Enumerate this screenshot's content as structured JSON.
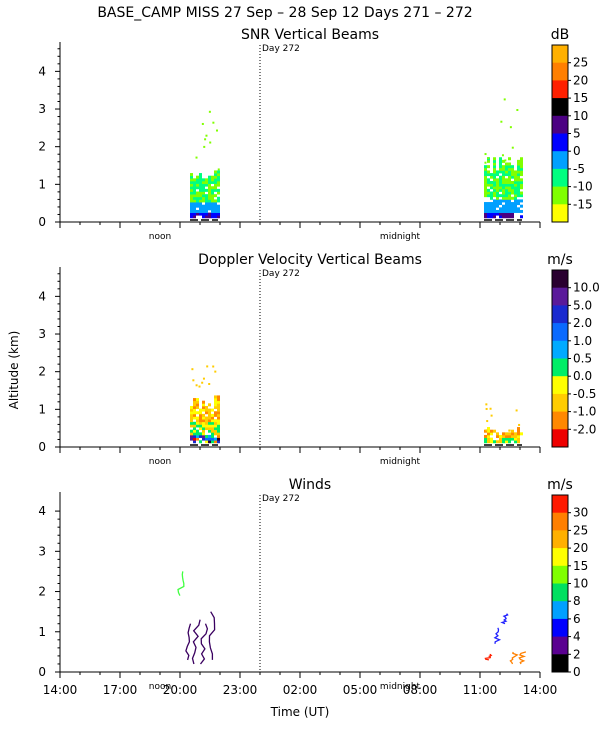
{
  "header": {
    "title": "BASE_CAMP MISS  27 Sep – 28 Sep 12 Days 271 – 272"
  },
  "common": {
    "y_axis_label": "Altitude (km)",
    "x_axis_label": "Time (UT)",
    "x_tick_labels": [
      "14:00",
      "17:00",
      "20:00",
      "23:00",
      "02:00",
      "05:00",
      "08:00",
      "11:00",
      "14:00"
    ],
    "noon_label": "noon",
    "midnight_label": "midnight",
    "day_marker_label": "Day 272",
    "y_tick_labels": [
      "0",
      "1",
      "2",
      "3",
      "4"
    ]
  },
  "chart_data": [
    {
      "type": "heatmap",
      "title": "SNR Vertical Beams",
      "xlabel": "",
      "ylabel": "Altitude (km)",
      "x_range_hours_ut": [
        14,
        38
      ],
      "ylim": [
        0,
        4.7
      ],
      "colorbar": {
        "unit": "dB",
        "tick_labels": [
          "25",
          "20",
          "15",
          "10",
          "5",
          "0",
          "-5",
          "-10",
          "-15"
        ],
        "colors": [
          "#ffb000",
          "#ff7f00",
          "#ff2000",
          "#000000",
          "#4b0082",
          "#0000ff",
          "#00a0ff",
          "#00ff80",
          "#80ff00",
          "#ffff00"
        ]
      },
      "data_blocks": [
        {
          "start_hour": 20.5,
          "end_hour": 21.9,
          "alt_top_km": 1.35,
          "scattered_to_km": 3.0
        },
        {
          "start_hour": 35.2,
          "end_hour": 37.1,
          "alt_top_km": 1.6,
          "scattered_to_km": 3.5
        }
      ]
    },
    {
      "type": "heatmap",
      "title": "Doppler Velocity Vertical Beams",
      "xlabel": "",
      "ylabel": "Altitude (km)",
      "x_range_hours_ut": [
        14,
        38
      ],
      "ylim": [
        0,
        4.7
      ],
      "colorbar": {
        "unit": "m/s",
        "tick_labels": [
          "10.0",
          "5.0",
          "2.0",
          "1.0",
          "0.5",
          "0.0",
          "-0.5",
          "-1.0",
          "-2.0"
        ],
        "colors": [
          "#2a0030",
          "#5a1a9a",
          "#1a2ad0",
          "#0a6aff",
          "#00aaff",
          "#00ee66",
          "#ffff00",
          "#ffcc00",
          "#ff8800",
          "#ee0000"
        ]
      },
      "data_blocks": [
        {
          "start_hour": 20.5,
          "end_hour": 21.9,
          "alt_top_km": 1.3,
          "scattered_to_km": 2.2
        },
        {
          "start_hour": 35.2,
          "end_hour": 37.1,
          "alt_top_km": 0.45,
          "scattered_to_km": 1.2
        }
      ]
    },
    {
      "type": "line",
      "title": "Winds",
      "xlabel": "Time (UT)",
      "ylabel": "Altitude (km)",
      "x_range_hours_ut": [
        14,
        38
      ],
      "ylim": [
        0,
        4.4
      ],
      "colorbar": {
        "unit": "m/s",
        "tick_labels": [
          "30",
          "25",
          "20",
          "15",
          "10",
          "8",
          "6",
          "4",
          "2",
          "0"
        ],
        "colors": [
          "#ff1a00",
          "#ff7f00",
          "#ffb000",
          "#ffff00",
          "#80ff00",
          "#00e060",
          "#00a0ff",
          "#0000ff",
          "#5a0090",
          "#000000"
        ]
      },
      "wind_profiles": [
        {
          "hour": 20.0,
          "base_km": 1.9,
          "top_km": 2.5,
          "color": "#40ff40"
        },
        {
          "hour": 20.4,
          "base_km": 0.3,
          "top_km": 1.2,
          "color": "#3a0060"
        },
        {
          "hour": 20.7,
          "base_km": 0.2,
          "top_km": 1.3,
          "color": "#3a0060"
        },
        {
          "hour": 21.1,
          "base_km": 0.2,
          "top_km": 1.2,
          "color": "#3a0060"
        },
        {
          "hour": 21.5,
          "base_km": 0.3,
          "top_km": 1.5,
          "color": "#3a0060"
        },
        {
          "hour": 35.3,
          "base_km": 0.3,
          "top_km": 0.45,
          "color": "#ff2000"
        },
        {
          "hour": 35.8,
          "base_km": 0.7,
          "top_km": 1.1,
          "color": "#2020ff"
        },
        {
          "hour": 36.2,
          "base_km": 1.2,
          "top_km": 1.45,
          "color": "#2020ff"
        },
        {
          "hour": 36.6,
          "base_km": 0.2,
          "top_km": 0.5,
          "color": "#ff8000"
        },
        {
          "hour": 37.0,
          "base_km": 0.2,
          "top_km": 0.5,
          "color": "#ff8000"
        }
      ]
    }
  ]
}
